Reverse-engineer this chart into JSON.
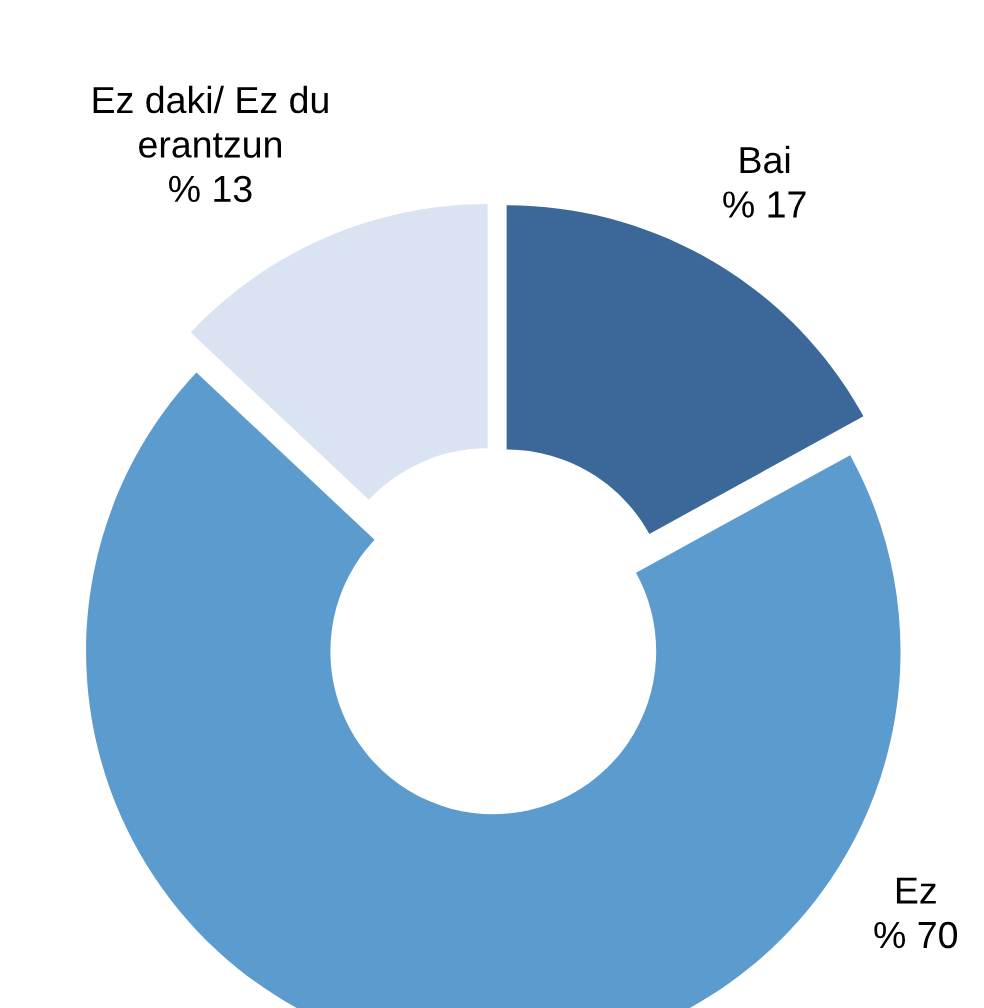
{
  "chart_data": {
    "type": "donut",
    "categories": [
      "Bai",
      "Ez",
      "Ez daki/ Ez du\nerantzun"
    ],
    "values": [
      17,
      70,
      13
    ],
    "colors": [
      "#3b6899",
      "#5b9bce",
      "#dae3f1"
    ],
    "value_labels": [
      "% 17",
      "% 70",
      "% 13"
    ]
  }
}
